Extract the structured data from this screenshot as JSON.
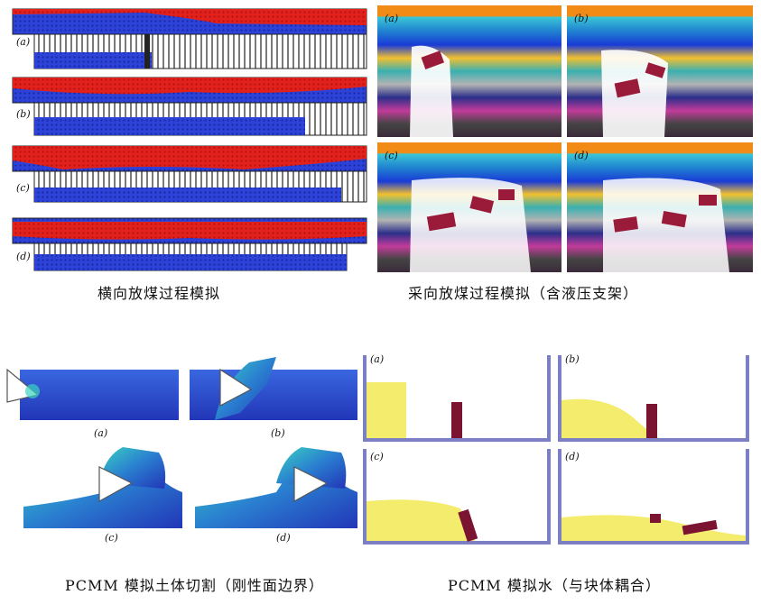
{
  "captions": {
    "q1": "横向放煤过程模拟",
    "q2": "采向放煤过程模拟（含液压支架）",
    "q3": "PCMM 模拟土体切割（刚性面边界）",
    "q4": "PCMM 模拟水（与块体耦合）"
  },
  "labels": {
    "a": "(a)",
    "b": "(b)",
    "c": "(c)",
    "d": "(d)"
  },
  "colors": {
    "coal_red": "#e2211c",
    "rock_blue": "#2c42d8",
    "support_dark": "#1b1b1b",
    "water_yellow": "#f3ec6d",
    "block_maroon": "#7a1430",
    "tank_purple": "#7d7fc4",
    "soil_blue": "#2a43c9",
    "soil_cyan": "#3ad3c0"
  }
}
